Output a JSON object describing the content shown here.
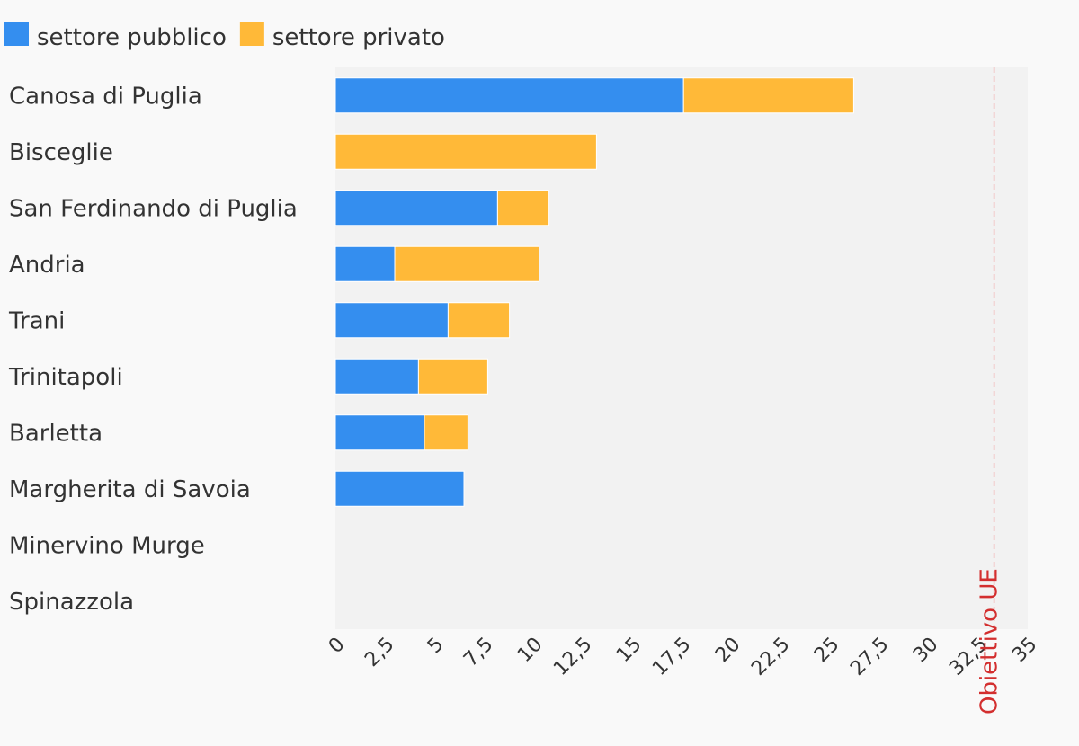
{
  "chart_data": {
    "type": "bar",
    "orientation": "horizontal",
    "stacked": true,
    "categories": [
      "Canosa di Puglia",
      "Bisceglie",
      "San Ferdinando di Puglia",
      "Andria",
      "Trani",
      "Trinitapoli",
      "Barletta",
      "Margherita di Savoia",
      "Minervino Murge",
      "Spinazzola"
    ],
    "series": [
      {
        "name": "settore pubblico",
        "color": "#348eef",
        "values": [
          17.6,
          0,
          8.2,
          3.0,
          5.7,
          4.2,
          4.5,
          6.5,
          0,
          0
        ]
      },
      {
        "name": "settore privato",
        "color": "#ffb938",
        "values": [
          8.6,
          13.2,
          2.6,
          7.3,
          3.1,
          3.5,
          2.2,
          0,
          0,
          0
        ]
      }
    ],
    "xlim": [
      0,
      35
    ],
    "x_ticks": [
      "0",
      "2,5",
      "5",
      "7,5",
      "10",
      "12,5",
      "15",
      "17,5",
      "20",
      "22,5",
      "25",
      "27,5",
      "30",
      "32,5",
      "35"
    ],
    "reference_line": {
      "value": 33.3,
      "label": "Obiettivo UE",
      "color": "#d32f2f"
    },
    "legend_position": "top-left",
    "grid": false
  }
}
